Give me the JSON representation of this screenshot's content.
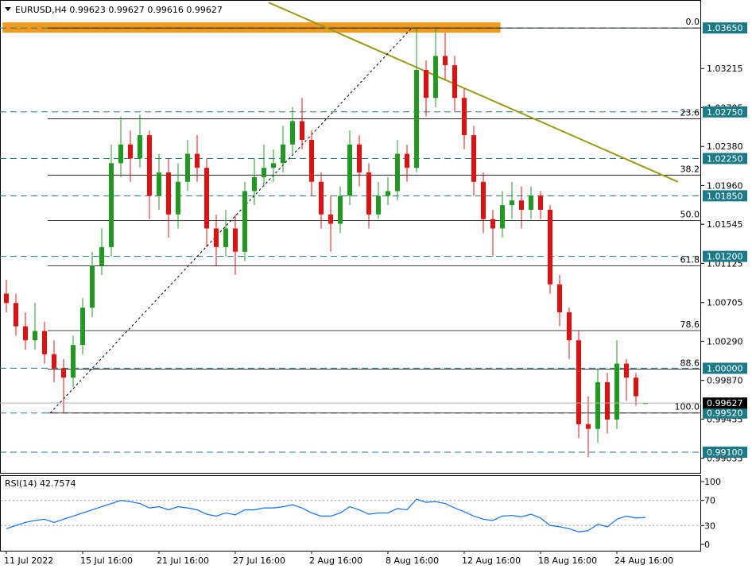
{
  "chart_data": {
    "type": "candlestick",
    "symbol": "EURUSD,H4",
    "ylim": [
      0.9887,
      1.0395
    ],
    "yticks": [
      1.03215,
      1.02795,
      {
        "value": 1.0238,
        "label": "1.02380"
      },
      {
        "value": 1.0196,
        "label": "1.01960"
      },
      1.01545,
      1.01125,
      1.00705,
      {
        "value": 1.0029,
        "label": "1.00290"
      },
      {
        "value": 0.9987,
        "label": "0.99870"
      },
      0.99455,
      0.99035
    ],
    "levels": [
      {
        "value": 1.0365,
        "label": "1.03650"
      },
      {
        "value": 1.0275,
        "label": "1.02750"
      },
      {
        "value": 1.0225,
        "label": "1.02250"
      },
      {
        "value": 1.0185,
        "label": "1.01850"
      },
      {
        "value": 1.012,
        "label": "1.01200"
      },
      {
        "value": 1.0,
        "label": "1.00000"
      },
      {
        "value": 0.9952,
        "label": "0.99520"
      },
      {
        "value": 0.991,
        "label": "0.99100"
      }
    ],
    "level_color": "#1b7a86",
    "fib_levels": [
      {
        "label": "0.0",
        "price": 1.0365
      },
      {
        "label": "23.6",
        "price": 1.02675
      },
      {
        "label": "38.2",
        "price": 1.02072
      },
      {
        "label": "50.0",
        "price": 1.01585
      },
      {
        "label": "61.8",
        "price": 1.01098
      },
      {
        "label": "78.6",
        "price": 1.00404
      },
      {
        "label": "88.6",
        "price": 0.99991
      },
      {
        "label": "100.0",
        "price": 0.9952
      }
    ],
    "zone": {
      "top": 1.0371,
      "bottom": 1.036,
      "x": [
        -0.4,
        51.8
      ],
      "color": "#f39a1c"
    },
    "trendline": {
      "x": [
        27.5,
        70.4
      ],
      "y": [
        1.03923,
        1.02
      ],
      "color": "#9a9a14"
    },
    "fib_anchor": {
      "x": [
        4.6,
        42.5
      ],
      "y": [
        0.9952,
        1.0365
      ]
    },
    "up_color": "#1f9a1f",
    "down_color": "#e01010",
    "categories": [
      "11 Jul 2022",
      null,
      null,
      null,
      null,
      null,
      null,
      null,
      "15 Jul 16:00",
      null,
      null,
      null,
      null,
      null,
      null,
      null,
      "21 Jul 16:00",
      null,
      null,
      null,
      null,
      null,
      null,
      null,
      "27 Jul 16:00",
      null,
      null,
      null,
      null,
      null,
      null,
      null,
      "2 Aug 16:00",
      null,
      null,
      null,
      null,
      null,
      null,
      null,
      "8 Aug 16:00",
      null,
      null,
      null,
      null,
      null,
      null,
      null,
      "12 Aug 16:00",
      null,
      null,
      null,
      null,
      null,
      null,
      null,
      "18 Aug 16:00",
      null,
      null,
      null,
      null,
      null,
      null,
      null,
      "24 Aug 16:00",
      null,
      null,
      null
    ],
    "open": [
      1.008,
      1.007,
      1.0045,
      1.003,
      1.004,
      1.0015,
      1.0,
      0.999,
      1.0025,
      1.0065,
      1.011,
      1.013,
      1.022,
      1.024,
      1.0225,
      1.025,
      1.0185,
      1.021,
      1.0165,
      1.02,
      1.023,
      1.0215,
      1.015,
      1.013,
      1.015,
      1.0125,
      1.019,
      1.0205,
      1.0215,
      1.022,
      1.024,
      1.0265,
      1.0245,
      1.02,
      1.0165,
      1.0155,
      1.0185,
      1.024,
      1.021,
      1.0165,
      1.0185,
      1.019,
      1.023,
      1.0215,
      1.032,
      1.029,
      1.0335,
      1.0325,
      1.029,
      1.025,
      1.02,
      1.016,
      1.015,
      1.0175,
      1.018,
      1.017,
      1.0185,
      1.017,
      1.009,
      1.006,
      1.003,
      0.994,
      0.9935,
      0.9985,
      0.9945,
      1.0005,
      0.999,
      0.99623
    ],
    "high": [
      1.0095,
      1.008,
      1.006,
      1.007,
      1.005,
      1.003,
      1.001,
      1.0035,
      1.0075,
      1.0125,
      1.015,
      1.024,
      1.027,
      1.0255,
      1.0272,
      1.0255,
      1.023,
      1.0225,
      1.022,
      1.0245,
      1.025,
      1.0225,
      1.0165,
      1.017,
      1.0165,
      1.02,
      1.0225,
      1.024,
      1.0235,
      1.026,
      1.028,
      1.029,
      1.0255,
      1.021,
      1.0185,
      1.0195,
      1.0255,
      1.025,
      1.022,
      1.02,
      1.0205,
      1.0245,
      1.024,
      1.0365,
      1.033,
      1.0365,
      1.036,
      1.0335,
      1.03,
      1.026,
      1.021,
      1.017,
      1.019,
      1.02,
      1.0195,
      1.0195,
      1.019,
      1.0175,
      1.01,
      1.0065,
      1.004,
      0.997,
      1.0,
      0.9995,
      1.003,
      1.001,
      0.9995,
      0.99627
    ],
    "low": [
      1.006,
      1.0035,
      1.002,
      1.002,
      1.0005,
      0.9985,
      0.9952,
      0.998,
      1.0015,
      1.0055,
      1.01,
      1.012,
      1.0205,
      1.02,
      1.0215,
      1.016,
      1.017,
      1.014,
      1.015,
      1.019,
      1.02,
      1.013,
      1.011,
      1.012,
      1.01,
      1.0115,
      1.0175,
      1.0195,
      1.02,
      1.021,
      1.023,
      1.0235,
      1.0185,
      1.015,
      1.0125,
      1.0145,
      1.0175,
      1.0195,
      1.015,
      1.016,
      1.0175,
      1.018,
      1.02,
      1.021,
      1.027,
      1.028,
      1.031,
      1.0275,
      1.0235,
      1.0185,
      1.0145,
      1.012,
      1.014,
      1.016,
      1.015,
      1.016,
      1.016,
      1.008,
      1.0045,
      1.001,
      0.9925,
      0.9905,
      0.992,
      0.993,
      0.9935,
      0.9965,
      0.996,
      0.99616
    ],
    "close": [
      1.007,
      1.0045,
      1.003,
      1.004,
      1.0015,
      1.0,
      0.999,
      1.0025,
      1.0065,
      1.011,
      1.013,
      1.022,
      1.024,
      1.0225,
      1.025,
      1.0185,
      1.021,
      1.0165,
      1.02,
      1.023,
      1.0215,
      1.015,
      1.013,
      1.015,
      1.0125,
      1.019,
      1.0205,
      1.0215,
      1.022,
      1.024,
      1.0265,
      1.0245,
      1.02,
      1.0165,
      1.0155,
      1.0185,
      1.024,
      1.021,
      1.0165,
      1.0185,
      1.019,
      1.023,
      1.0215,
      1.032,
      1.029,
      1.0335,
      1.0325,
      1.029,
      1.025,
      1.02,
      1.016,
      1.015,
      1.0175,
      1.018,
      1.017,
      1.0185,
      1.017,
      1.009,
      1.006,
      1.003,
      0.994,
      0.9935,
      0.9985,
      0.9945,
      1.0005,
      0.999,
      0.997,
      0.99627
    ],
    "rsi": {
      "name": "RSI(14)",
      "last": 42.7574,
      "color": "#1e78ff",
      "ylim": [
        0,
        100
      ],
      "yticks": [
        100,
        70,
        30,
        0
      ],
      "guides": [
        70,
        30
      ],
      "values": [
        25,
        30,
        35,
        38,
        40,
        35,
        40,
        45,
        50,
        55,
        60,
        65,
        70,
        68,
        65,
        58,
        60,
        55,
        60,
        58,
        55,
        48,
        45,
        50,
        47,
        55,
        55,
        58,
        58,
        60,
        63,
        58,
        50,
        45,
        45,
        50,
        60,
        55,
        48,
        50,
        50,
        57,
        55,
        72,
        67,
        68,
        65,
        58,
        52,
        45,
        40,
        38,
        45,
        46,
        44,
        48,
        42,
        30,
        28,
        25,
        20,
        22,
        32,
        28,
        40,
        45,
        42,
        42.7574
      ]
    }
  }
}
